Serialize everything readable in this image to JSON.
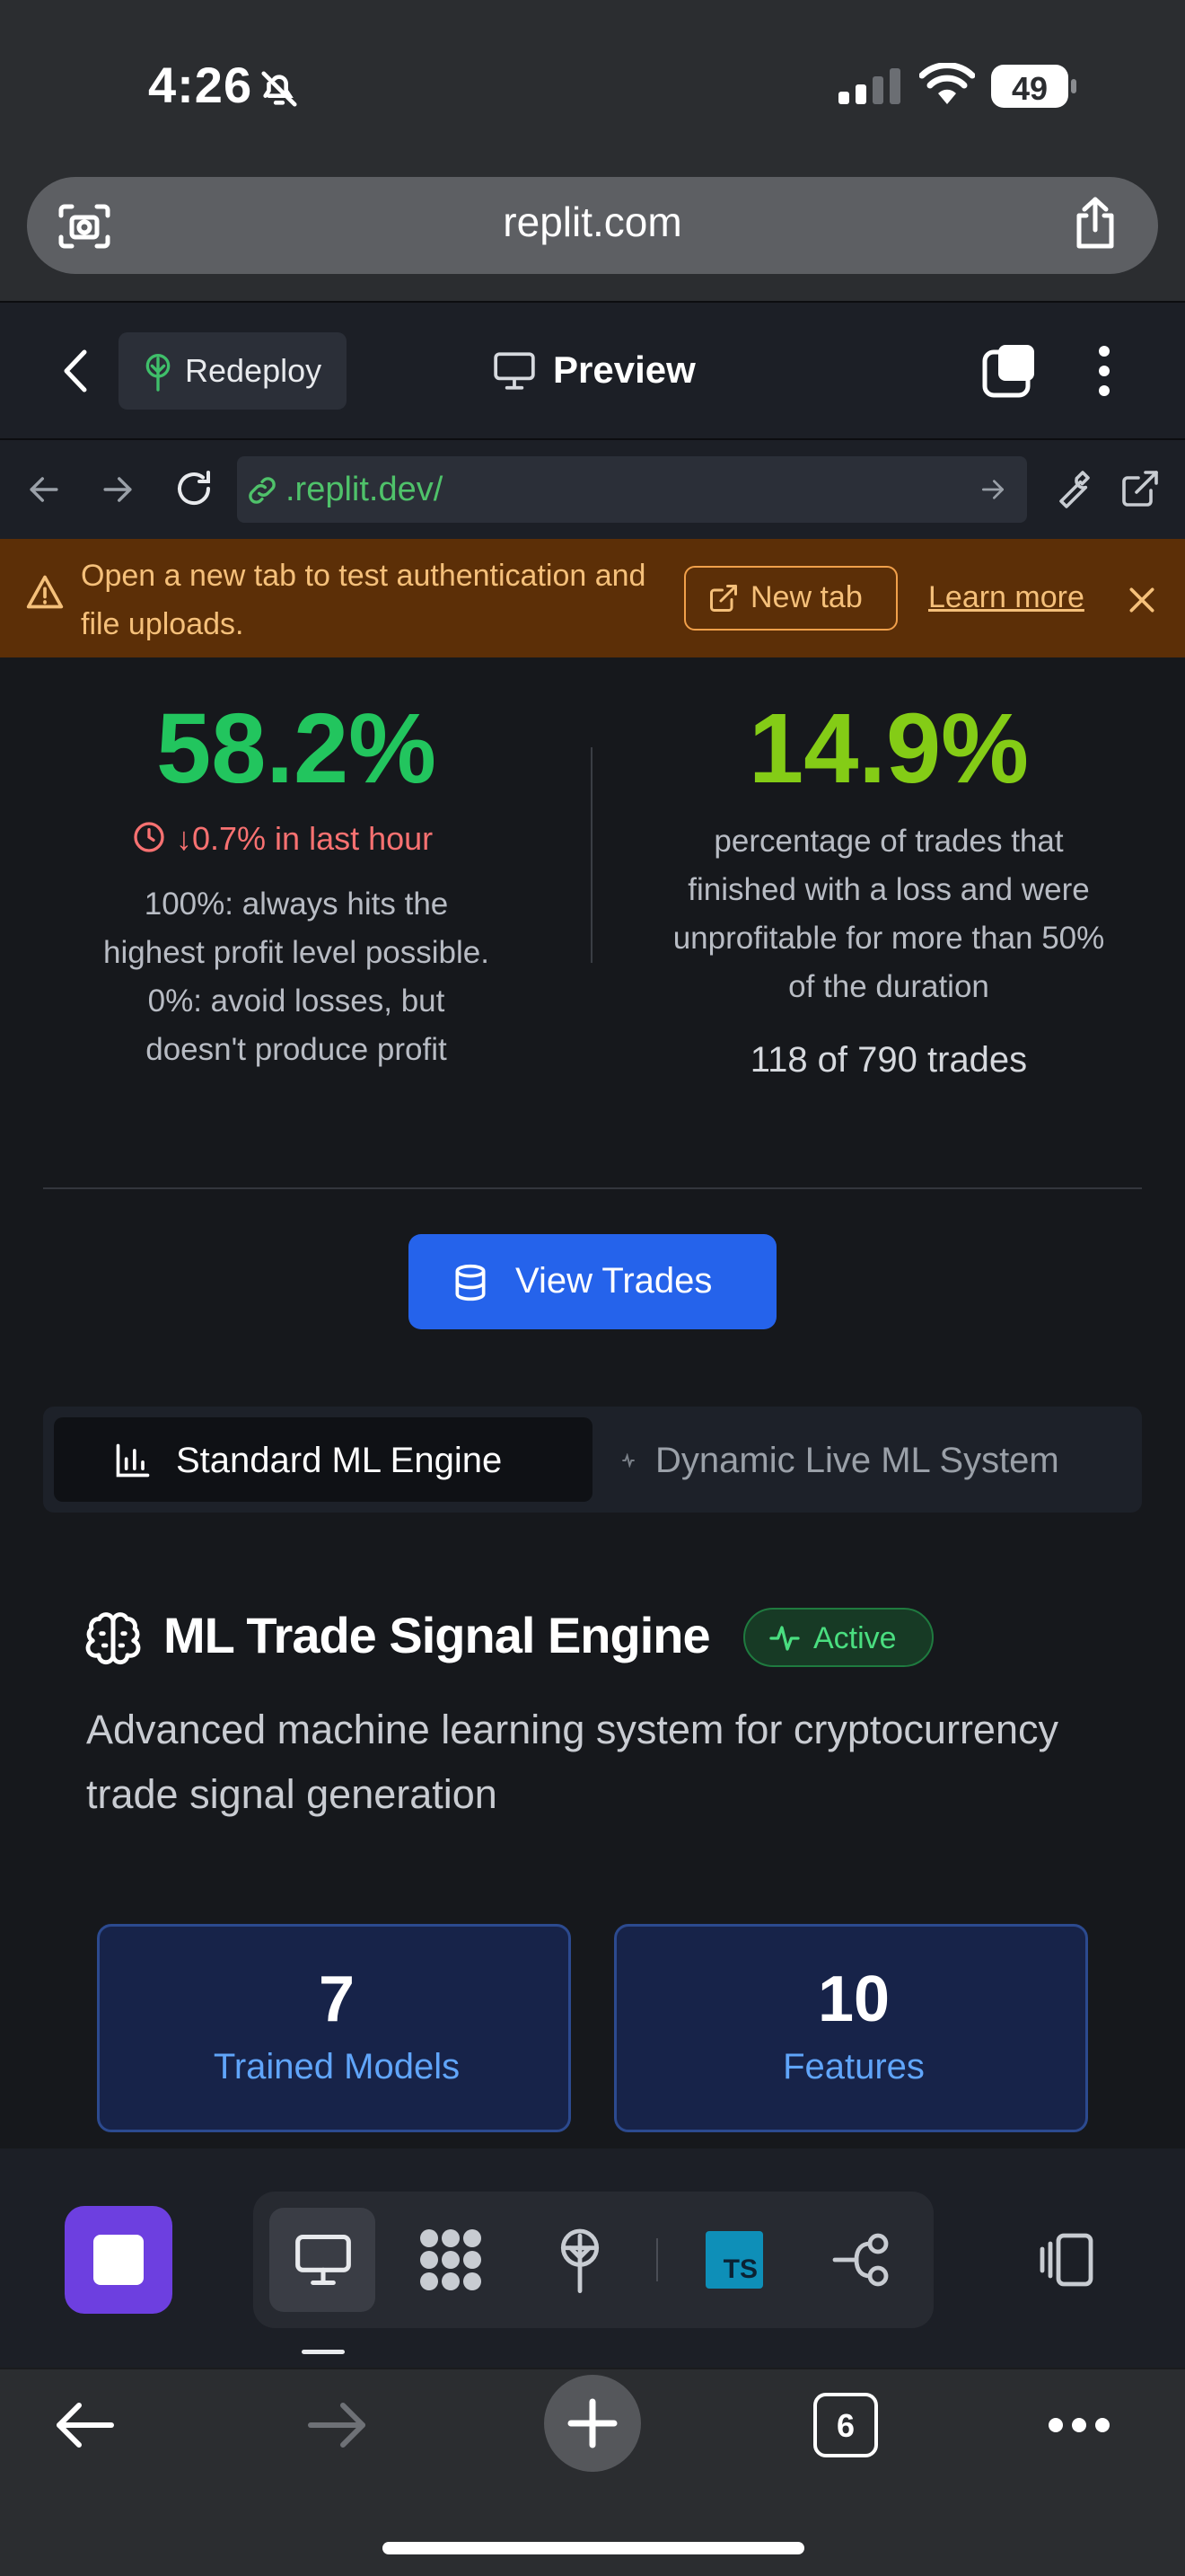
{
  "status_bar": {
    "time": "4:26",
    "battery": "49"
  },
  "safari": {
    "url": "replit.com"
  },
  "replit_header": {
    "redeploy_label": "Redeploy",
    "preview_label": "Preview"
  },
  "dev_browser": {
    "url": ".replit.dev/"
  },
  "banner": {
    "text": "Open a new tab to test authentication and file uploads.",
    "new_tab_label": "New tab",
    "learn_more_label": "Learn more"
  },
  "stats": {
    "strength": {
      "value": "58.2%",
      "change": "↓0.7% in last hour",
      "description": "100%: always hits the highest profit level possible. 0%: avoid losses, but doesn't produce profit"
    },
    "failure_rate": {
      "value": "14.9%",
      "description": "percentage of trades that finished with a loss and were unprofitable for more than 50% of the duration",
      "count": "118 of 790 trades"
    }
  },
  "view_trades_label": "View Trades",
  "tabs": [
    {
      "label": "Standard ML Engine",
      "active": true
    },
    {
      "label": "Dynamic Live ML System",
      "active": false
    }
  ],
  "engine": {
    "title": "ML Trade Signal Engine",
    "badge": "Active",
    "description": "Advanced machine learning system for cryptocurrency trade signal generation"
  },
  "cards": [
    {
      "value": "7",
      "label": "Trained Models"
    },
    {
      "value": "10",
      "label": "Features"
    }
  ],
  "toolbar": {
    "ts_label": "TS"
  },
  "safari_toolbar": {
    "tab_count": "6"
  },
  "colors": {
    "accent_blue": "#2563eb",
    "positive_green": "#22c55e",
    "lime": "#84cc16",
    "negative_red": "#f87171",
    "banner_bg": "#5c2f07",
    "stop_purple": "#6d3fe0"
  }
}
